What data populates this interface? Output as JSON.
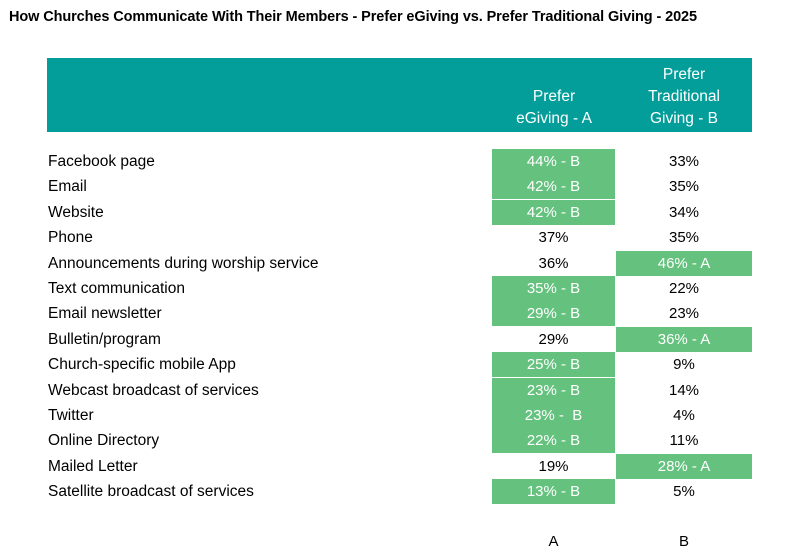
{
  "title": "How Churches Communicate With Their Members  - Prefer eGiving vs. Prefer Traditional Giving  - 2025",
  "columns": {
    "a": [
      "Prefer",
      "eGiving - A"
    ],
    "b": [
      "Prefer",
      "Traditional",
      "Giving - B"
    ]
  },
  "colors": {
    "header": "#049e9a",
    "highlight": "#65c27e",
    "header_text": "#ffffff"
  },
  "footer": {
    "a": "A",
    "b": "B"
  },
  "chart_data": {
    "type": "table",
    "title": "How Churches Communicate With Their Members  - Prefer eGiving vs. Prefer Traditional Giving  - 2025",
    "series": [
      {
        "name": "Prefer eGiving - A"
      },
      {
        "name": "Prefer Traditional Giving - B"
      }
    ],
    "rows": [
      {
        "label": "Facebook page",
        "a": "44% - B",
        "b": "33%",
        "a_value": 44,
        "b_value": 33,
        "a_hl": true,
        "b_hl": false
      },
      {
        "label": "Email",
        "a": "42% - B",
        "b": "35%",
        "a_value": 42,
        "b_value": 35,
        "a_hl": true,
        "b_hl": false
      },
      {
        "label": "Website",
        "a": "42% - B",
        "b": "34%",
        "a_value": 42,
        "b_value": 34,
        "a_hl": true,
        "b_hl": false
      },
      {
        "label": "Phone",
        "a": "37%",
        "b": "35%",
        "a_value": 37,
        "b_value": 35,
        "a_hl": false,
        "b_hl": false
      },
      {
        "label": "Announcements during worship service",
        "a": "36%",
        "b": "46% - A",
        "a_value": 36,
        "b_value": 46,
        "a_hl": false,
        "b_hl": true
      },
      {
        "label": "Text communication",
        "a": "35% - B",
        "b": "22%",
        "a_value": 35,
        "b_value": 22,
        "a_hl": true,
        "b_hl": false
      },
      {
        "label": "Email newsletter",
        "a": "29% - B",
        "b": "23%",
        "a_value": 29,
        "b_value": 23,
        "a_hl": true,
        "b_hl": false
      },
      {
        "label": "Bulletin/program",
        "a": "29%",
        "b": "36% - A",
        "a_value": 29,
        "b_value": 36,
        "a_hl": false,
        "b_hl": true
      },
      {
        "label": "Church-specific mobile App",
        "a": "25% - B",
        "b": "9%",
        "a_value": 25,
        "b_value": 9,
        "a_hl": true,
        "b_hl": false
      },
      {
        "label": "Webcast broadcast of services",
        "a": "23% - B",
        "b": "14%",
        "a_value": 23,
        "b_value": 14,
        "a_hl": true,
        "b_hl": false
      },
      {
        "label": "Twitter",
        "a": "23% -  B",
        "b": "4%",
        "a_value": 23,
        "b_value": 4,
        "a_hl": true,
        "b_hl": false
      },
      {
        "label": "Online Directory",
        "a": "22% - B",
        "b": "11%",
        "a_value": 22,
        "b_value": 11,
        "a_hl": true,
        "b_hl": false
      },
      {
        "label": "Mailed Letter",
        "a": "19%",
        "b": "28% - A",
        "a_value": 19,
        "b_value": 28,
        "a_hl": false,
        "b_hl": true
      },
      {
        "label": "Satellite broadcast of services",
        "a": "13% - B",
        "b": "5%",
        "a_value": 13,
        "b_value": 5,
        "a_hl": true,
        "b_hl": false
      }
    ]
  }
}
